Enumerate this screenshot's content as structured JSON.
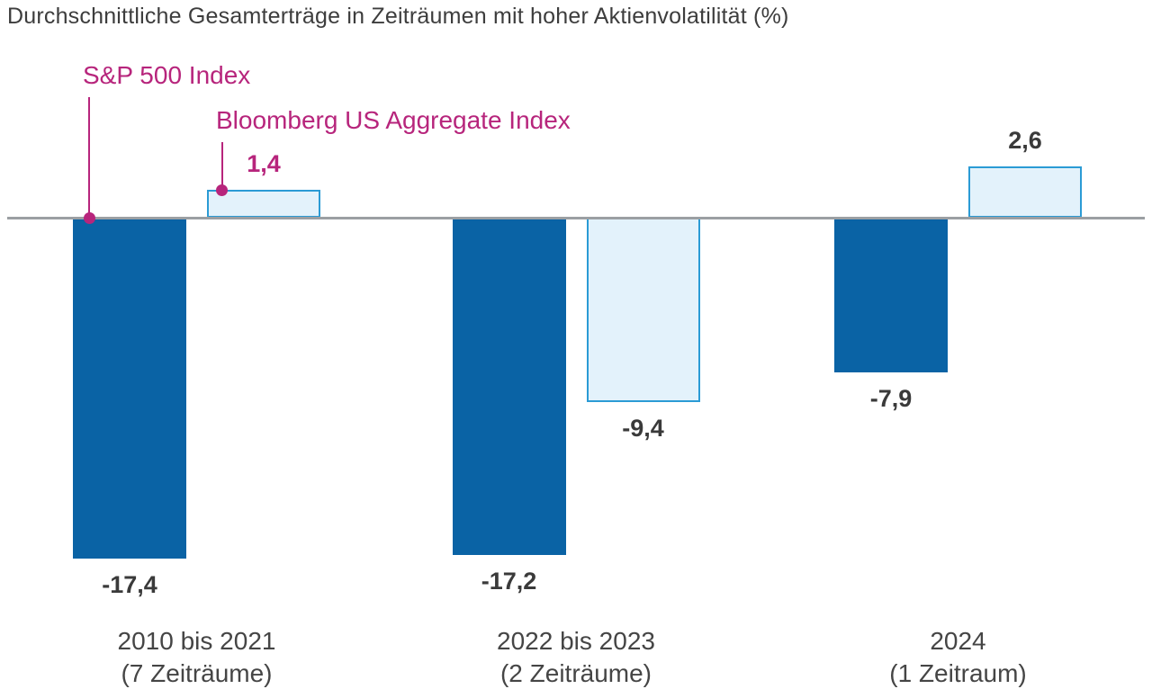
{
  "title": "Durchschnittliche Gesamterträge in Zeiträumen mit hoher Aktienvolatilität (%)",
  "legend": {
    "sp500": "S&P 500 Index",
    "bloomberg": "Bloomberg US Aggregate Index"
  },
  "colors": {
    "sp500_bar": "#0A63A5",
    "bloomberg_fill": "#E3F2FB",
    "bloomberg_stroke": "#2B9BD5",
    "magenta": "#B7257C",
    "axis_line": "#9B9FA3",
    "title_text": "#3D3D3D",
    "value_text": "#3A3A3A",
    "category_text": "#454545"
  },
  "chart_data": {
    "type": "bar",
    "title": "Durchschnittliche Gesamterträge in Zeiträumen mit hoher Aktienvolatilität (%)",
    "unit": "%",
    "baseline": 0,
    "grid": false,
    "legend_position": "top-left callout labels with leader lines",
    "value_label_format": "German decimal comma",
    "categories": [
      {
        "line1": "2010 bis 2021",
        "line2": "(7 Zeiträume)"
      },
      {
        "line1": "2022 bis 2023",
        "line2": "(2 Zeiträume)"
      },
      {
        "line1": "2024",
        "line2": "(1 Zeitraum)"
      }
    ],
    "series": [
      {
        "name": "S&P 500 Index",
        "values": [
          -17.4,
          -17.2,
          -7.9
        ],
        "labels": [
          "-17,4",
          "-17,2",
          "-7,9"
        ]
      },
      {
        "name": "Bloomberg US Aggregate Index",
        "values": [
          1.4,
          -9.4,
          2.6
        ],
        "labels": [
          "1,4",
          "-9,4",
          "2,6"
        ],
        "highlight_label_index": 0
      }
    ]
  }
}
